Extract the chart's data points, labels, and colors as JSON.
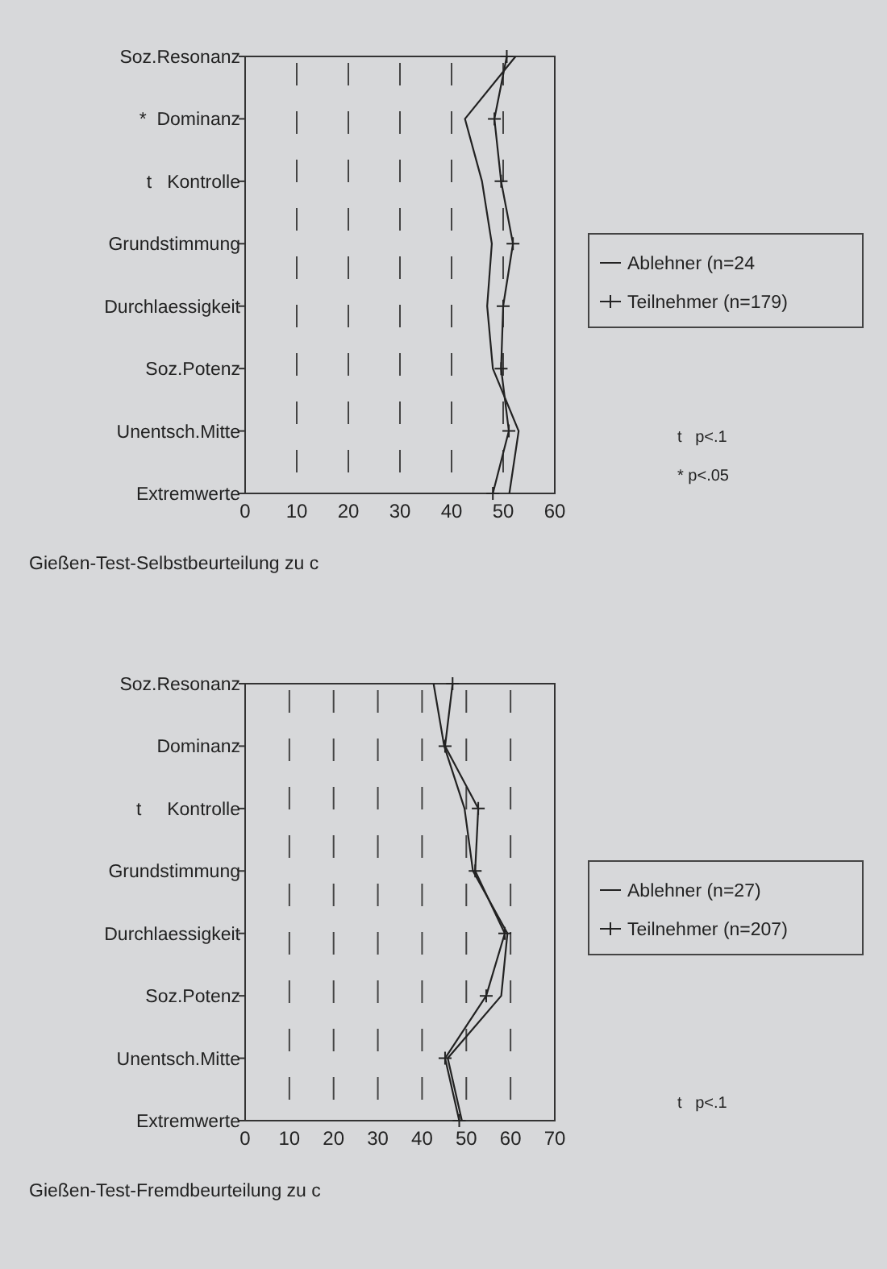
{
  "chart_data": [
    {
      "type": "line",
      "orientation": "horizontal",
      "title": "Gießen-Test-Selbstbeurteilung zu c",
      "categories": [
        "Soz.Resonanz",
        "*  Dominanz",
        "t   Kontrolle",
        "Grundstimmung",
        "Durchlaessigkeit",
        "Soz.Potenz",
        "Unentsch.Mitte",
        "Extremwerte"
      ],
      "series": [
        {
          "name": "Ablehner (n=24",
          "color": "#222222",
          "marker": "none",
          "values": [
            52.4,
            42.6,
            45.9,
            47.8,
            46.9,
            48,
            53,
            51.2
          ]
        },
        {
          "name": "Teilnehmer (n=179)",
          "color": "#222222",
          "marker": "cross",
          "values": [
            50.7,
            48.3,
            49.6,
            51.9,
            50,
            49.6,
            51.1,
            48
          ]
        }
      ],
      "xlim": [
        0,
        60
      ],
      "xticks": [
        0,
        10,
        20,
        30,
        40,
        50,
        60
      ],
      "grid": "x",
      "legend": "right",
      "annotations": [
        "t   p<.1",
        "* p<.05"
      ]
    },
    {
      "type": "line",
      "orientation": "horizontal",
      "title": "Gießen-Test-Fremdbeurteilung zu c",
      "categories": [
        "Soz.Resonanz",
        "Dominanz",
        "t     Kontrolle",
        "Grundstimmung",
        "Durchlaessigkeit",
        "Soz.Potenz",
        "Unentsch.Mitte",
        "Extremwerte"
      ],
      "series": [
        {
          "name": "Ablehner (n=27)",
          "color": "#222222",
          "marker": "none",
          "values": [
            42.6,
            45,
            49.6,
            51.5,
            59.3,
            57.9,
            45.8,
            49
          ]
        },
        {
          "name": "Teilnehmer (n=207)",
          "color": "#222222",
          "marker": "cross",
          "values": [
            46.9,
            45.2,
            52.7,
            52,
            58.7,
            54.5,
            45.2,
            48.4
          ]
        }
      ],
      "xlim": [
        0,
        70
      ],
      "xticks": [
        0,
        10,
        20,
        30,
        40,
        50,
        60,
        70
      ],
      "grid": "x",
      "legend": "right",
      "annotations": [
        "t   p<.1"
      ]
    }
  ]
}
